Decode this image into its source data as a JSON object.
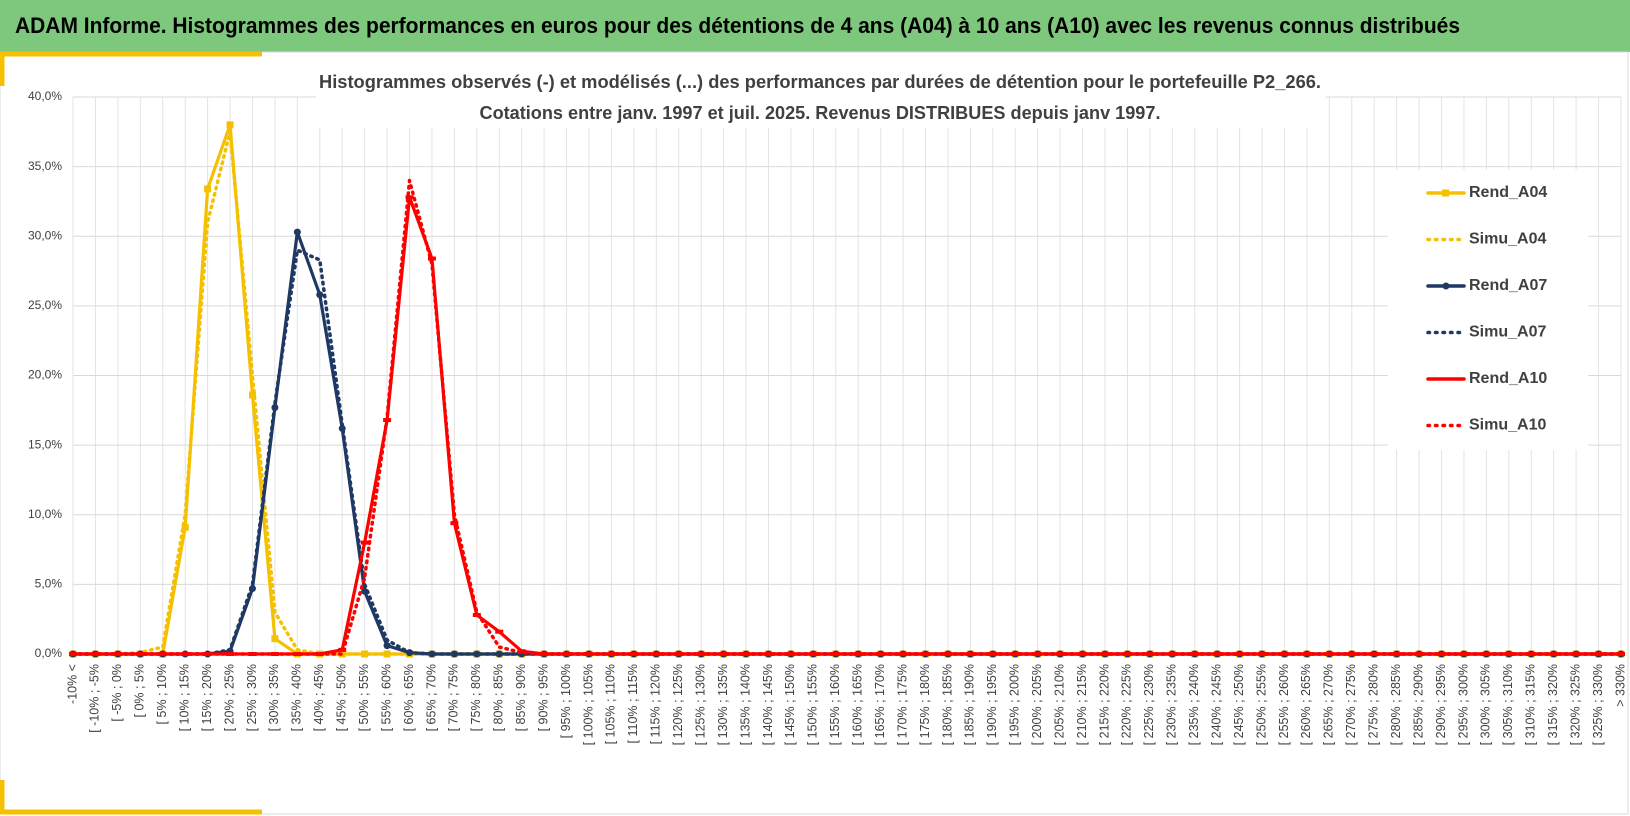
{
  "header": {
    "title": "ADAM Informe. Histogrammes des performances en euros pour des détentions de 4 ans (A04) à 10 ans (A10) avec les revenus connus distribués"
  },
  "chart_data": {
    "type": "line",
    "title": "Histogrammes observés (-) et modélisés (...) des performances par durées de détention pour le portefeuille P2_266.",
    "subtitle": "Cotations entre janv. 1997 et juil. 2025. Revenus DISTRIBUES depuis janv 1997.",
    "categories": [
      "-10% <",
      "[ -10% ; -5%",
      "[ -5% ; 0%",
      "[ 0% ; 5%",
      "[ 5% ; 10%",
      "[ 10% ; 15%",
      "[ 15% ; 20%",
      "[ 20% ; 25%",
      "[ 25% ; 30%",
      "[ 30% ; 35%",
      "[ 35% ; 40%",
      "[ 40% ; 45%",
      "[ 45% ; 50%",
      "[ 50% ; 55%",
      "[ 55% ; 60%",
      "[ 60% ; 65%",
      "[ 65% ; 70%",
      "[ 70% ; 75%",
      "[ 75% ; 80%",
      "[ 80% ; 85%",
      "[ 85% ; 90%",
      "[ 90% ; 95%",
      "[ 95% ; 100%",
      "[ 100% ; 105%",
      "[ 105% ; 110%",
      "[ 110% ; 115%",
      "[ 115% ; 120%",
      "[ 120% ; 125%",
      "[ 125% ; 130%",
      "[ 130% ; 135%",
      "[ 135% ; 140%",
      "[ 140% ; 145%",
      "[ 145% ; 150%",
      "[ 150% ; 155%",
      "[ 155% ; 160%",
      "[ 160% ; 165%",
      "[ 165% ; 170%",
      "[ 170% ; 175%",
      "[ 175% ; 180%",
      "[ 180% ; 185%",
      "[ 185% ; 190%",
      "[ 190% ; 195%",
      "[ 195% ; 200%",
      "[ 200% ; 205%",
      "[ 205% ; 210%",
      "[ 210% ; 215%",
      "[ 215% ; 220%",
      "[ 220% ; 225%",
      "[ 225% ; 230%",
      "[ 230% ; 235%",
      "[ 235% ; 240%",
      "[ 240% ; 245%",
      "[ 245% ; 250%",
      "[ 250% ; 255%",
      "[ 255% ; 260%",
      "[ 260% ; 265%",
      "[ 265% ; 270%",
      "[ 270% ; 275%",
      "[ 275% ; 280%",
      "[ 280% ; 285%",
      "[ 285% ; 290%",
      "[ 290% ; 295%",
      "[ 295% ; 300%",
      "[ 300% ; 305%",
      "[ 305% ; 310%",
      "[ 310% ; 315%",
      "[ 315% ; 320%",
      "[ 320% ; 325%",
      "[ 325% ; 330%",
      "> 330%"
    ],
    "series": [
      {
        "name": "Rend_A04",
        "color": "#f5c000",
        "dash": false,
        "marker": "square",
        "values": [
          0,
          0,
          0,
          0,
          0,
          9.1,
          33.4,
          38,
          18.6,
          1.1,
          0,
          0,
          0,
          0,
          0,
          0,
          0,
          0,
          0,
          0,
          0,
          0,
          0,
          0,
          0,
          0,
          0,
          0,
          0,
          0,
          0,
          0,
          0,
          0,
          0,
          0,
          0,
          0,
          0,
          0,
          0,
          0,
          0,
          0,
          0,
          0,
          0,
          0,
          0,
          0,
          0,
          0,
          0,
          0,
          0,
          0,
          0,
          0,
          0,
          0,
          0,
          0,
          0,
          0,
          0,
          0,
          0,
          0,
          0,
          0
        ]
      },
      {
        "name": "Simu_A04",
        "color": "#f5c000",
        "dash": true,
        "values": [
          0,
          0,
          0,
          0.1,
          0.5,
          10,
          31,
          37.5,
          20,
          3,
          0.3,
          0,
          0,
          0,
          0,
          0,
          0,
          0,
          0,
          0,
          0,
          0,
          0,
          0,
          0,
          0,
          0,
          0,
          0,
          0,
          0,
          0,
          0,
          0,
          0,
          0,
          0,
          0,
          0,
          0,
          0,
          0,
          0,
          0,
          0,
          0,
          0,
          0,
          0,
          0,
          0,
          0,
          0,
          0,
          0,
          0,
          0,
          0,
          0,
          0,
          0,
          0,
          0,
          0,
          0,
          0,
          0,
          0,
          0,
          0
        ]
      },
      {
        "name": "Rend_A07",
        "color": "#1f3864",
        "dash": false,
        "marker": "circle",
        "values": [
          0,
          0,
          0,
          0,
          0,
          0,
          0,
          0.2,
          4.7,
          17.7,
          30.3,
          25.8,
          16.2,
          4.5,
          0.6,
          0.1,
          0,
          0,
          0,
          0,
          0,
          0,
          0,
          0,
          0,
          0,
          0,
          0,
          0,
          0,
          0,
          0,
          0,
          0,
          0,
          0,
          0,
          0,
          0,
          0,
          0,
          0,
          0,
          0,
          0,
          0,
          0,
          0,
          0,
          0,
          0,
          0,
          0,
          0,
          0,
          0,
          0,
          0,
          0,
          0,
          0,
          0,
          0,
          0,
          0,
          0,
          0,
          0,
          0,
          0
        ]
      },
      {
        "name": "Simu_A07",
        "color": "#1f3864",
        "dash": true,
        "values": [
          0,
          0,
          0,
          0,
          0,
          0,
          0,
          0.3,
          5,
          18,
          29,
          28.3,
          16.5,
          5,
          1,
          0.1,
          0,
          0,
          0,
          0,
          0,
          0,
          0,
          0,
          0,
          0,
          0,
          0,
          0,
          0,
          0,
          0,
          0,
          0,
          0,
          0,
          0,
          0,
          0,
          0,
          0,
          0,
          0,
          0,
          0,
          0,
          0,
          0,
          0,
          0,
          0,
          0,
          0,
          0,
          0,
          0,
          0,
          0,
          0,
          0,
          0,
          0,
          0,
          0,
          0,
          0,
          0,
          0,
          0,
          0
        ]
      },
      {
        "name": "Rend_A10",
        "color": "#ff0000",
        "dash": false,
        "marker": "dash",
        "values": [
          0,
          0,
          0,
          0,
          0,
          0,
          0,
          0,
          0,
          0,
          0,
          0,
          0.3,
          8,
          16.8,
          32.8,
          28.4,
          9.4,
          2.8,
          1.6,
          0.2,
          0,
          0,
          0,
          0,
          0,
          0,
          0,
          0,
          0,
          0,
          0,
          0,
          0,
          0,
          0,
          0,
          0,
          0,
          0,
          0,
          0,
          0,
          0,
          0,
          0,
          0,
          0,
          0,
          0,
          0,
          0,
          0,
          0,
          0,
          0,
          0,
          0,
          0,
          0,
          0,
          0,
          0,
          0,
          0,
          0,
          0,
          0,
          0,
          0
        ]
      },
      {
        "name": "Simu_A10",
        "color": "#ff0000",
        "dash": true,
        "values": [
          0,
          0,
          0,
          0,
          0,
          0,
          0,
          0,
          0,
          0,
          0,
          0,
          0,
          5.5,
          17,
          34,
          28,
          10,
          3,
          0.5,
          0.1,
          0,
          0,
          0,
          0,
          0,
          0,
          0,
          0,
          0,
          0,
          0,
          0,
          0,
          0,
          0,
          0,
          0,
          0,
          0,
          0,
          0,
          0,
          0,
          0,
          0,
          0,
          0,
          0,
          0,
          0,
          0,
          0,
          0,
          0,
          0,
          0,
          0,
          0,
          0,
          0,
          0,
          0,
          0,
          0,
          0,
          0,
          0,
          0,
          0
        ]
      }
    ],
    "ylim": [
      0,
      40
    ],
    "yticks": [
      {
        "value": 0,
        "label": "0,0%"
      },
      {
        "value": 5,
        "label": "5,0%"
      },
      {
        "value": 10,
        "label": "10,0%"
      },
      {
        "value": 15,
        "label": "15,0%"
      },
      {
        "value": 20,
        "label": "20,0%"
      },
      {
        "value": 25,
        "label": "25,0%"
      },
      {
        "value": 30,
        "label": "30,0%"
      },
      {
        "value": 35,
        "label": "35,0%"
      },
      {
        "value": 40,
        "label": "40,0%"
      }
    ],
    "grid": true,
    "legend": "right"
  }
}
